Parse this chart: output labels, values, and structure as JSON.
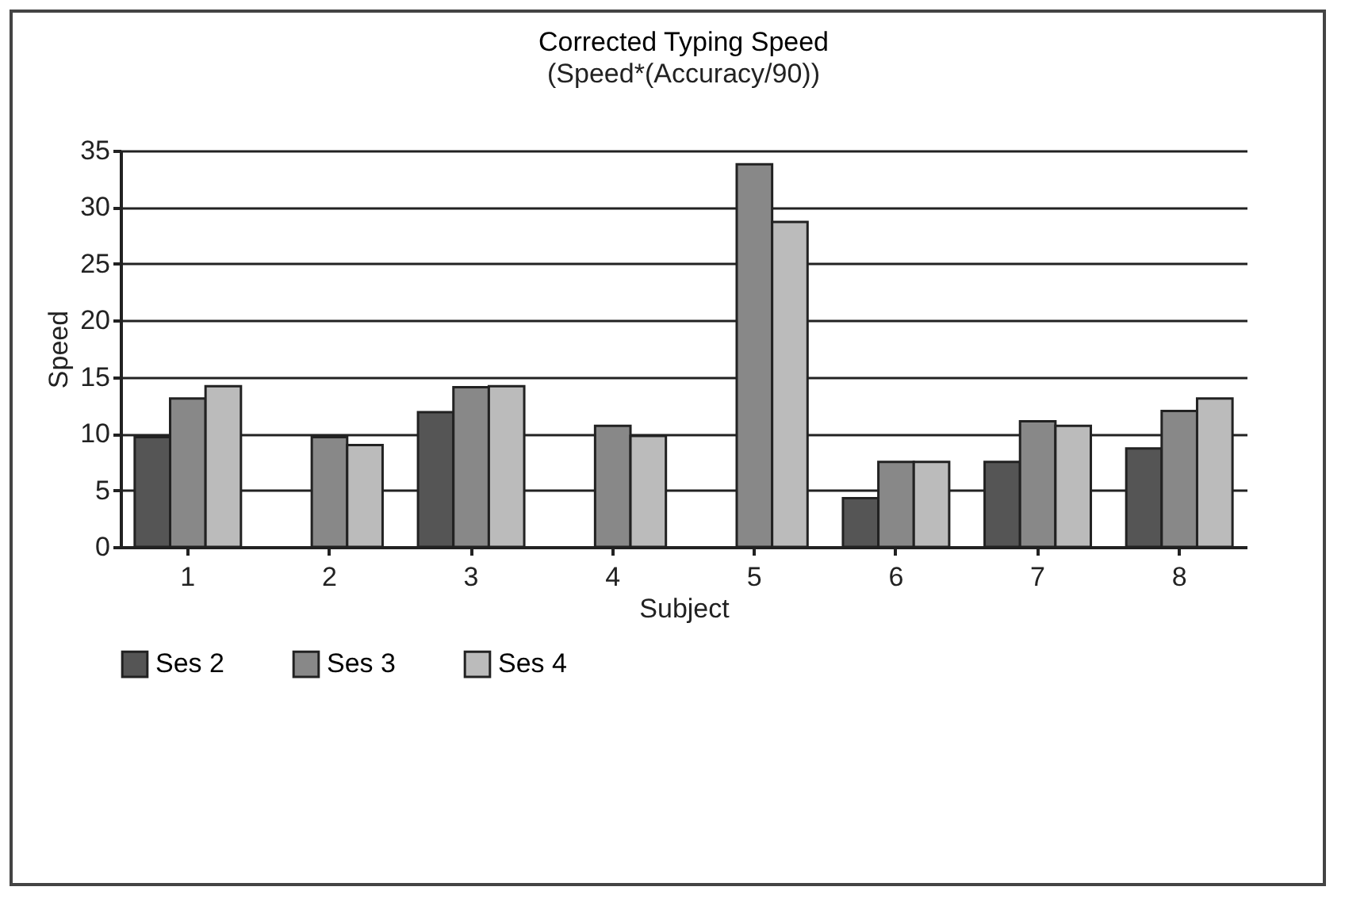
{
  "chart_data": {
    "type": "bar",
    "title": "Corrected Typing Speed",
    "subtitle": "(Speed*(Accuracy/90))",
    "xlabel": "Subject",
    "ylabel": "Speed",
    "categories": [
      "1",
      "2",
      "3",
      "4",
      "5",
      "6",
      "7",
      "8"
    ],
    "series": [
      {
        "name": "Ses 2",
        "color": "#555555",
        "values": [
          9.7,
          null,
          11.9,
          null,
          null,
          4.3,
          7.5,
          8.7
        ]
      },
      {
        "name": "Ses 3",
        "color": "#888888",
        "values": [
          13.1,
          9.7,
          14.1,
          10.7,
          33.8,
          7.5,
          11.1,
          12.0
        ]
      },
      {
        "name": "Ses 4",
        "color": "#bbbbbb",
        "values": [
          14.2,
          9.0,
          14.2,
          9.8,
          28.7,
          7.5,
          10.7,
          13.1
        ]
      }
    ],
    "ylim": [
      0,
      35
    ],
    "yticks": [
      0,
      5,
      10,
      15,
      20,
      25,
      30,
      35
    ],
    "grid": "y",
    "legend": "bottom"
  }
}
